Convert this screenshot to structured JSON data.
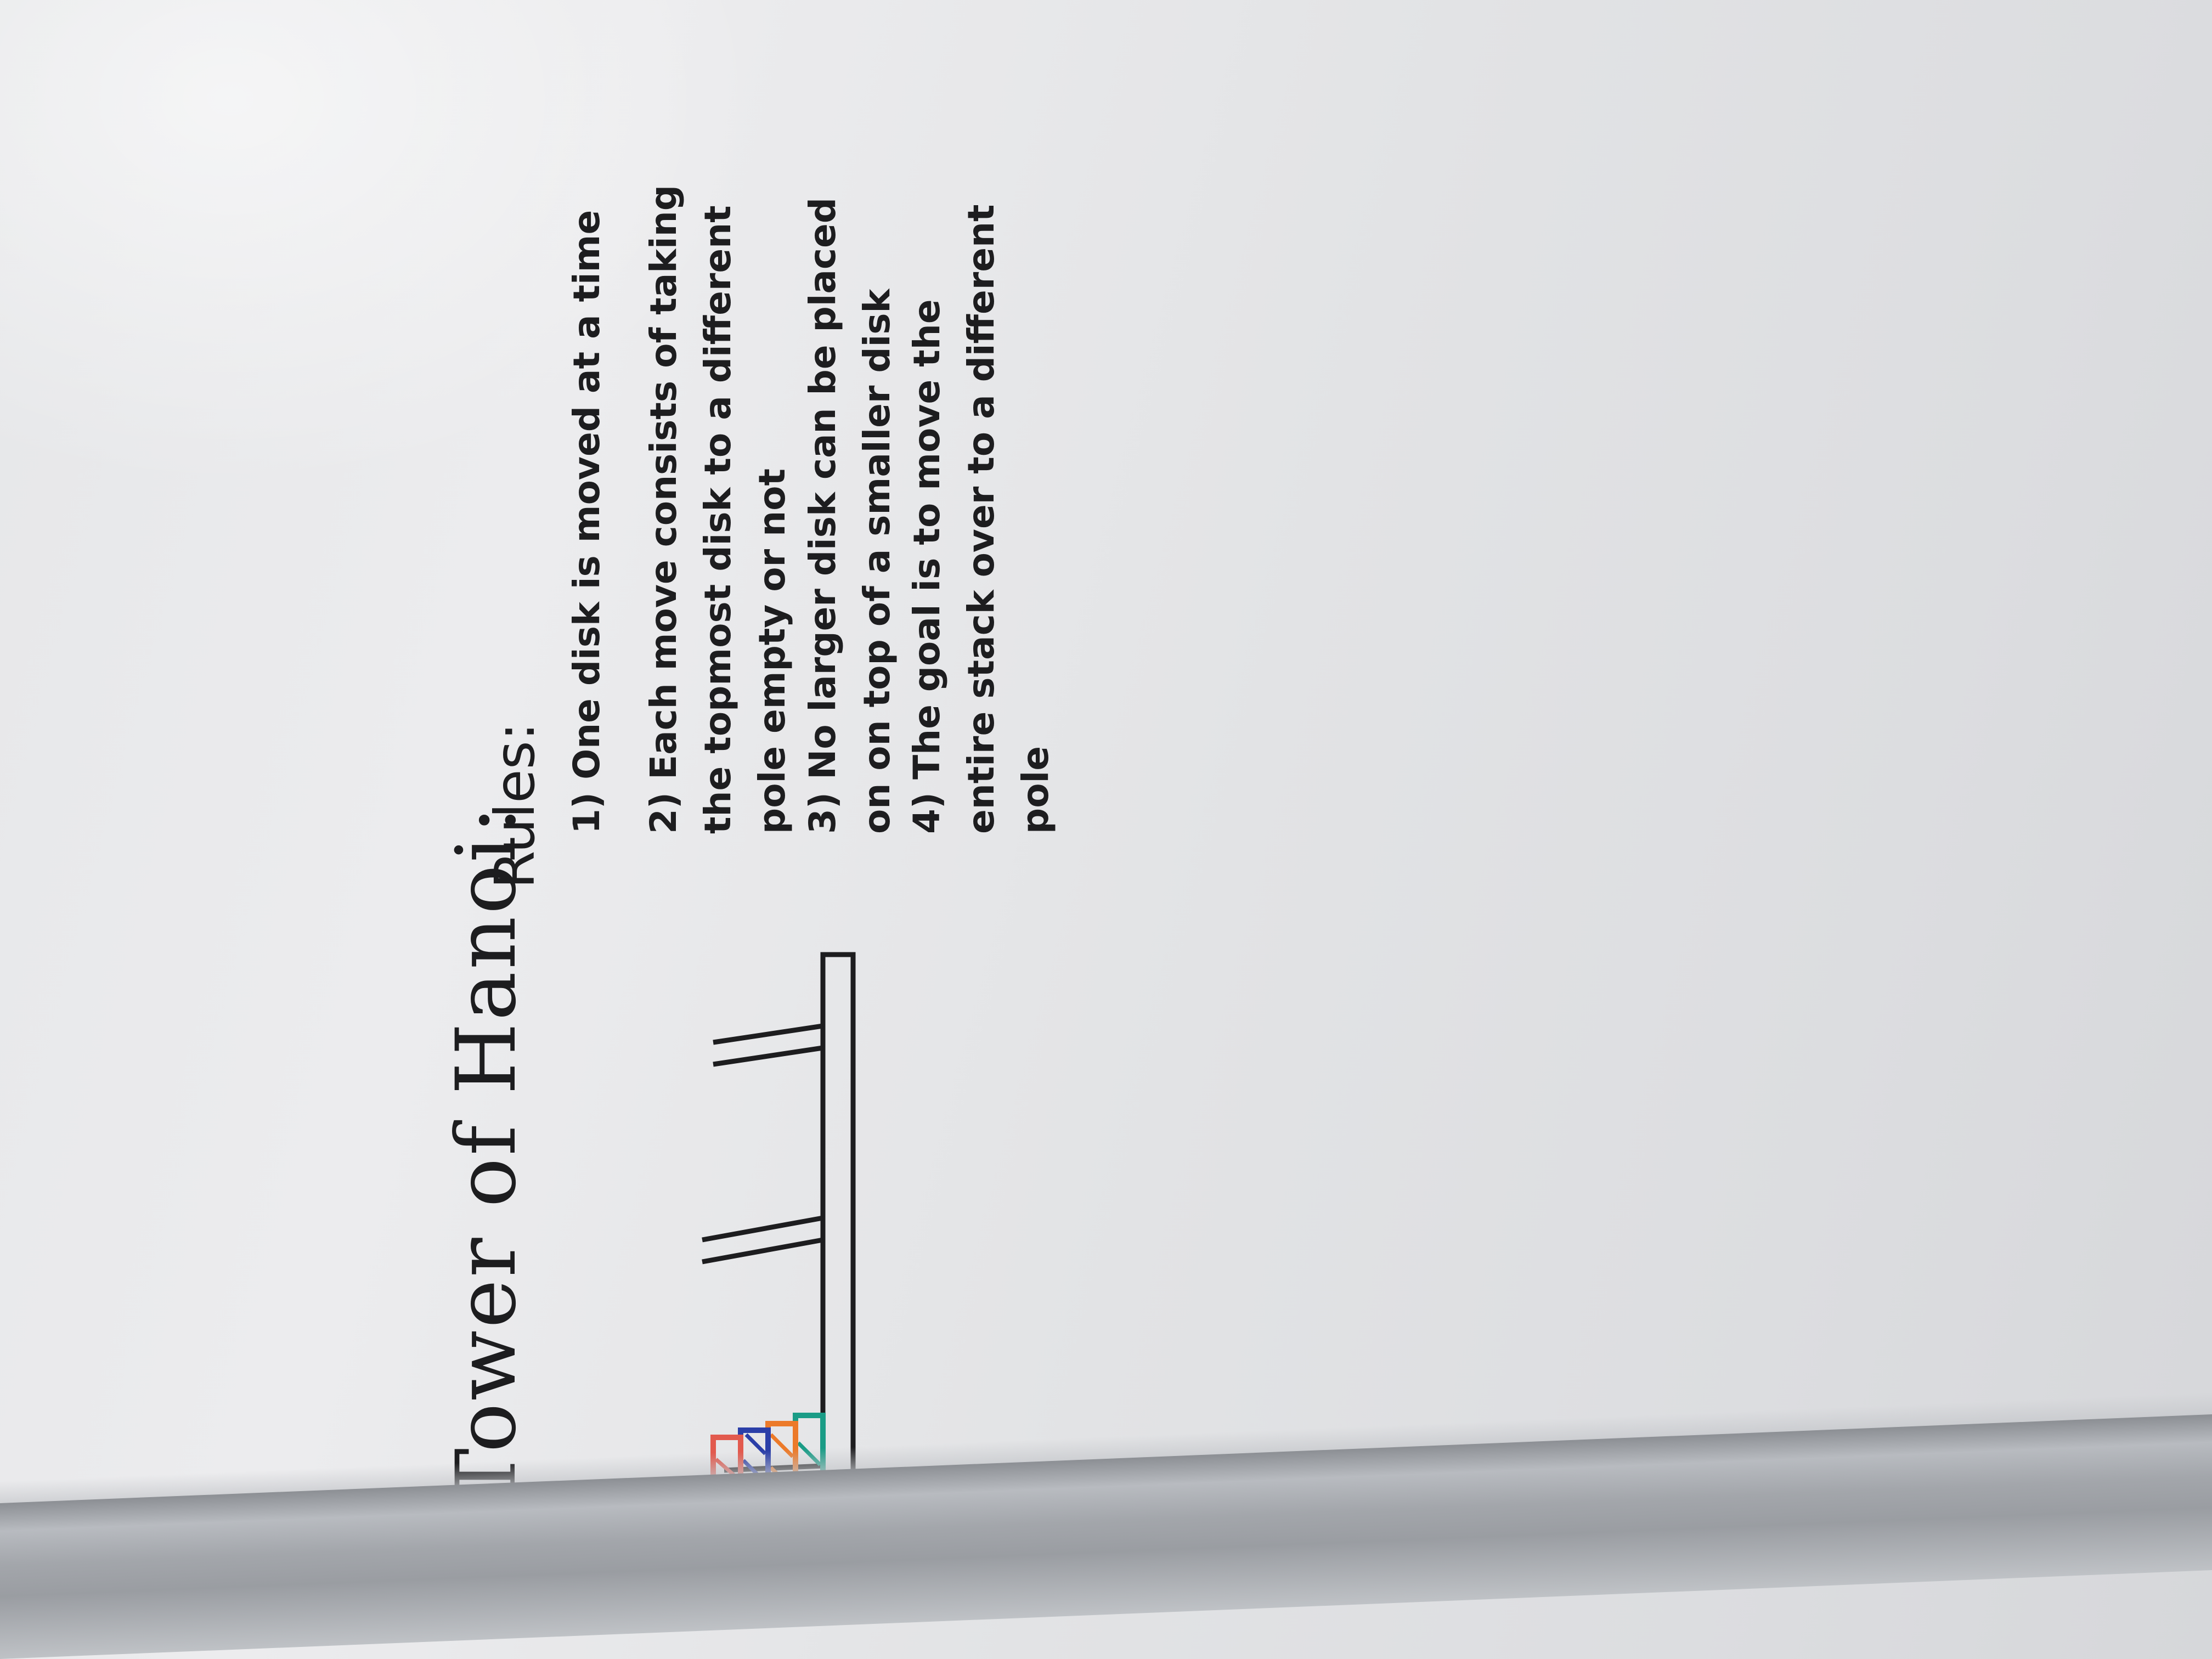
{
  "board": {
    "title": "Tower of Hanoi:",
    "rules_heading": "Rules:",
    "rules": [
      "1) One disk is moved at a time",
      "2) Each move consists of taking the topmost disk to a different pole empty or not",
      "3) No larger disk can be placed on on top of a smaller disk",
      "4) The goal is to move the entire stack over to a different pole"
    ],
    "disk_colors": [
      "#1a9c86",
      "#ec7a2a",
      "#2b3fa8",
      "#e25a4e"
    ]
  }
}
